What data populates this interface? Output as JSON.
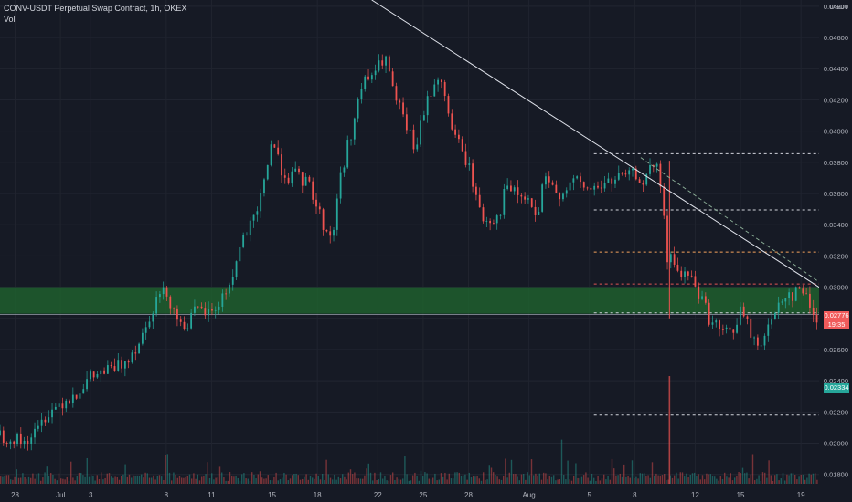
{
  "header": {
    "symbol_line": "CONV-USDT Perpetual Swap Contract, 1h, OKEX",
    "indicator": "Vol"
  },
  "price_axis": {
    "currency": "USDT",
    "current_price": "0.02776",
    "countdown": "19:35",
    "last_close": "0.02334"
  },
  "colors": {
    "background": "#161a25",
    "up": "#26a69a",
    "down": "#ef5350",
    "zone_fill": "#1f5f2e",
    "trendline": "#e0e3eb",
    "level_white": "#d1d4dc",
    "level_orange": "#f7a35c",
    "level_red": "#e05555",
    "tag_red": "#f15b5b",
    "tag_green": "#26a69a"
  },
  "chart_data": {
    "type": "candlestick",
    "interval": "1h",
    "exchange": "OKEX",
    "ylim": [
      0.0174,
      0.0484
    ],
    "y_ticks": [
      "0.04800",
      "0.04600",
      "0.04400",
      "0.04200",
      "0.04000",
      "0.03800",
      "0.03600",
      "0.03400",
      "0.03200",
      "0.03000",
      "0.02800",
      "0.02600",
      "0.02400",
      "0.02200",
      "0.02000",
      "0.01800"
    ],
    "x_ticks": [
      "28",
      "Jul",
      "3",
      "8",
      "11",
      "15",
      "18",
      "22",
      "25",
      "28",
      "Aug",
      "5",
      "8",
      "12",
      "15",
      "19"
    ],
    "x_tick_days": [
      -3,
      0,
      2,
      7,
      10,
      14,
      17,
      21,
      24,
      27,
      31,
      35,
      38,
      42,
      45,
      49
    ],
    "x_range_days": [
      -4,
      50.2
    ],
    "price_path": [
      [
        -4,
        0.0205
      ],
      [
        -3,
        0.0203
      ],
      [
        -2.5,
        0.02
      ],
      [
        -1.5,
        0.0208
      ],
      [
        -1,
        0.0218
      ],
      [
        0,
        0.0226
      ],
      [
        1,
        0.0232
      ],
      [
        2,
        0.0242
      ],
      [
        2.5,
        0.0244
      ],
      [
        3,
        0.0246
      ],
      [
        4,
        0.025
      ],
      [
        5,
        0.0262
      ],
      [
        5.5,
        0.0271
      ],
      [
        6,
        0.0285
      ],
      [
        6.5,
        0.0295
      ],
      [
        7,
        0.0297
      ],
      [
        8,
        0.0275
      ],
      [
        8.5,
        0.0278
      ],
      [
        9,
        0.0285
      ],
      [
        10,
        0.0283
      ],
      [
        10.5,
        0.029
      ],
      [
        11,
        0.0298
      ],
      [
        11.5,
        0.031
      ],
      [
        12,
        0.033
      ],
      [
        13,
        0.0345
      ],
      [
        13.5,
        0.037
      ],
      [
        14,
        0.0395
      ],
      [
        14.5,
        0.0378
      ],
      [
        15,
        0.037
      ],
      [
        15.5,
        0.0372
      ],
      [
        16.5,
        0.0365
      ],
      [
        17.5,
        0.0337
      ],
      [
        18,
        0.0332
      ],
      [
        18.5,
        0.037
      ],
      [
        19.5,
        0.041
      ],
      [
        20,
        0.043
      ],
      [
        21,
        0.044
      ],
      [
        21.5,
        0.0448
      ],
      [
        22,
        0.0425
      ],
      [
        23,
        0.04
      ],
      [
        23.5,
        0.0388
      ],
      [
        24,
        0.041
      ],
      [
        24.5,
        0.0425
      ],
      [
        25,
        0.0436
      ],
      [
        26,
        0.04
      ],
      [
        26.5,
        0.0388
      ],
      [
        27,
        0.0378
      ],
      [
        27.5,
        0.0358
      ],
      [
        28,
        0.0343
      ],
      [
        29,
        0.0345
      ],
      [
        29.5,
        0.0365
      ],
      [
        30,
        0.036
      ],
      [
        31,
        0.0355
      ],
      [
        31.5,
        0.0342
      ],
      [
        32,
        0.0368
      ],
      [
        33,
        0.036
      ],
      [
        34,
        0.0368
      ],
      [
        35,
        0.0362
      ],
      [
        36,
        0.0366
      ],
      [
        37,
        0.037
      ],
      [
        38,
        0.0372
      ],
      [
        38.5,
        0.0368
      ],
      [
        39,
        0.0374
      ],
      [
        39.4,
        0.0378
      ],
      [
        39.7,
        0.0365
      ],
      [
        40,
        0.034
      ],
      [
        40.2,
        0.031
      ],
      [
        40.5,
        0.0322
      ],
      [
        41,
        0.0305
      ],
      [
        41.5,
        0.031
      ],
      [
        42,
        0.03
      ],
      [
        42.5,
        0.0292
      ],
      [
        43,
        0.0278
      ],
      [
        44,
        0.027
      ],
      [
        44.5,
        0.0272
      ],
      [
        45,
        0.0285
      ],
      [
        45.5,
        0.0275
      ],
      [
        46,
        0.0262
      ],
      [
        46.5,
        0.0268
      ],
      [
        47,
        0.0276
      ],
      [
        47.5,
        0.029
      ],
      [
        48,
        0.0296
      ],
      [
        48.5,
        0.0295
      ],
      [
        49,
        0.03
      ],
      [
        49.5,
        0.029
      ],
      [
        50,
        0.028
      ],
      [
        50.5,
        0.0276
      ],
      [
        51,
        0.027
      ],
      [
        51.5,
        0.0276
      ],
      [
        52,
        0.0272
      ],
      [
        52.6,
        0.0265
      ],
      [
        53,
        0.025
      ],
      [
        53.2,
        0.0236
      ],
      [
        53.5,
        0.0233
      ]
    ],
    "levels": [
      {
        "price": 0.03855,
        "color": "level_white"
      },
      {
        "price": 0.03495,
        "color": "level_white"
      },
      {
        "price": 0.03225,
        "color": "level_orange"
      },
      {
        "price": 0.0302,
        "color": "level_red"
      },
      {
        "price": 0.02835,
        "color": "level_white"
      },
      {
        "price": 0.0218,
        "color": "level_white"
      }
    ],
    "zone": [
      0.0283,
      0.03
    ],
    "horizontal_line": 0.0283,
    "trendline": [
      [
        20.6,
        0.0484
      ],
      [
        53.8,
        0.02776
      ]
    ],
    "dashed_trend": [
      [
        38.4,
        0.0383
      ],
      [
        53.8,
        0.0279
      ]
    ],
    "spike": {
      "day": 40.3,
      "high": 0.0381,
      "low": 0.028
    }
  }
}
